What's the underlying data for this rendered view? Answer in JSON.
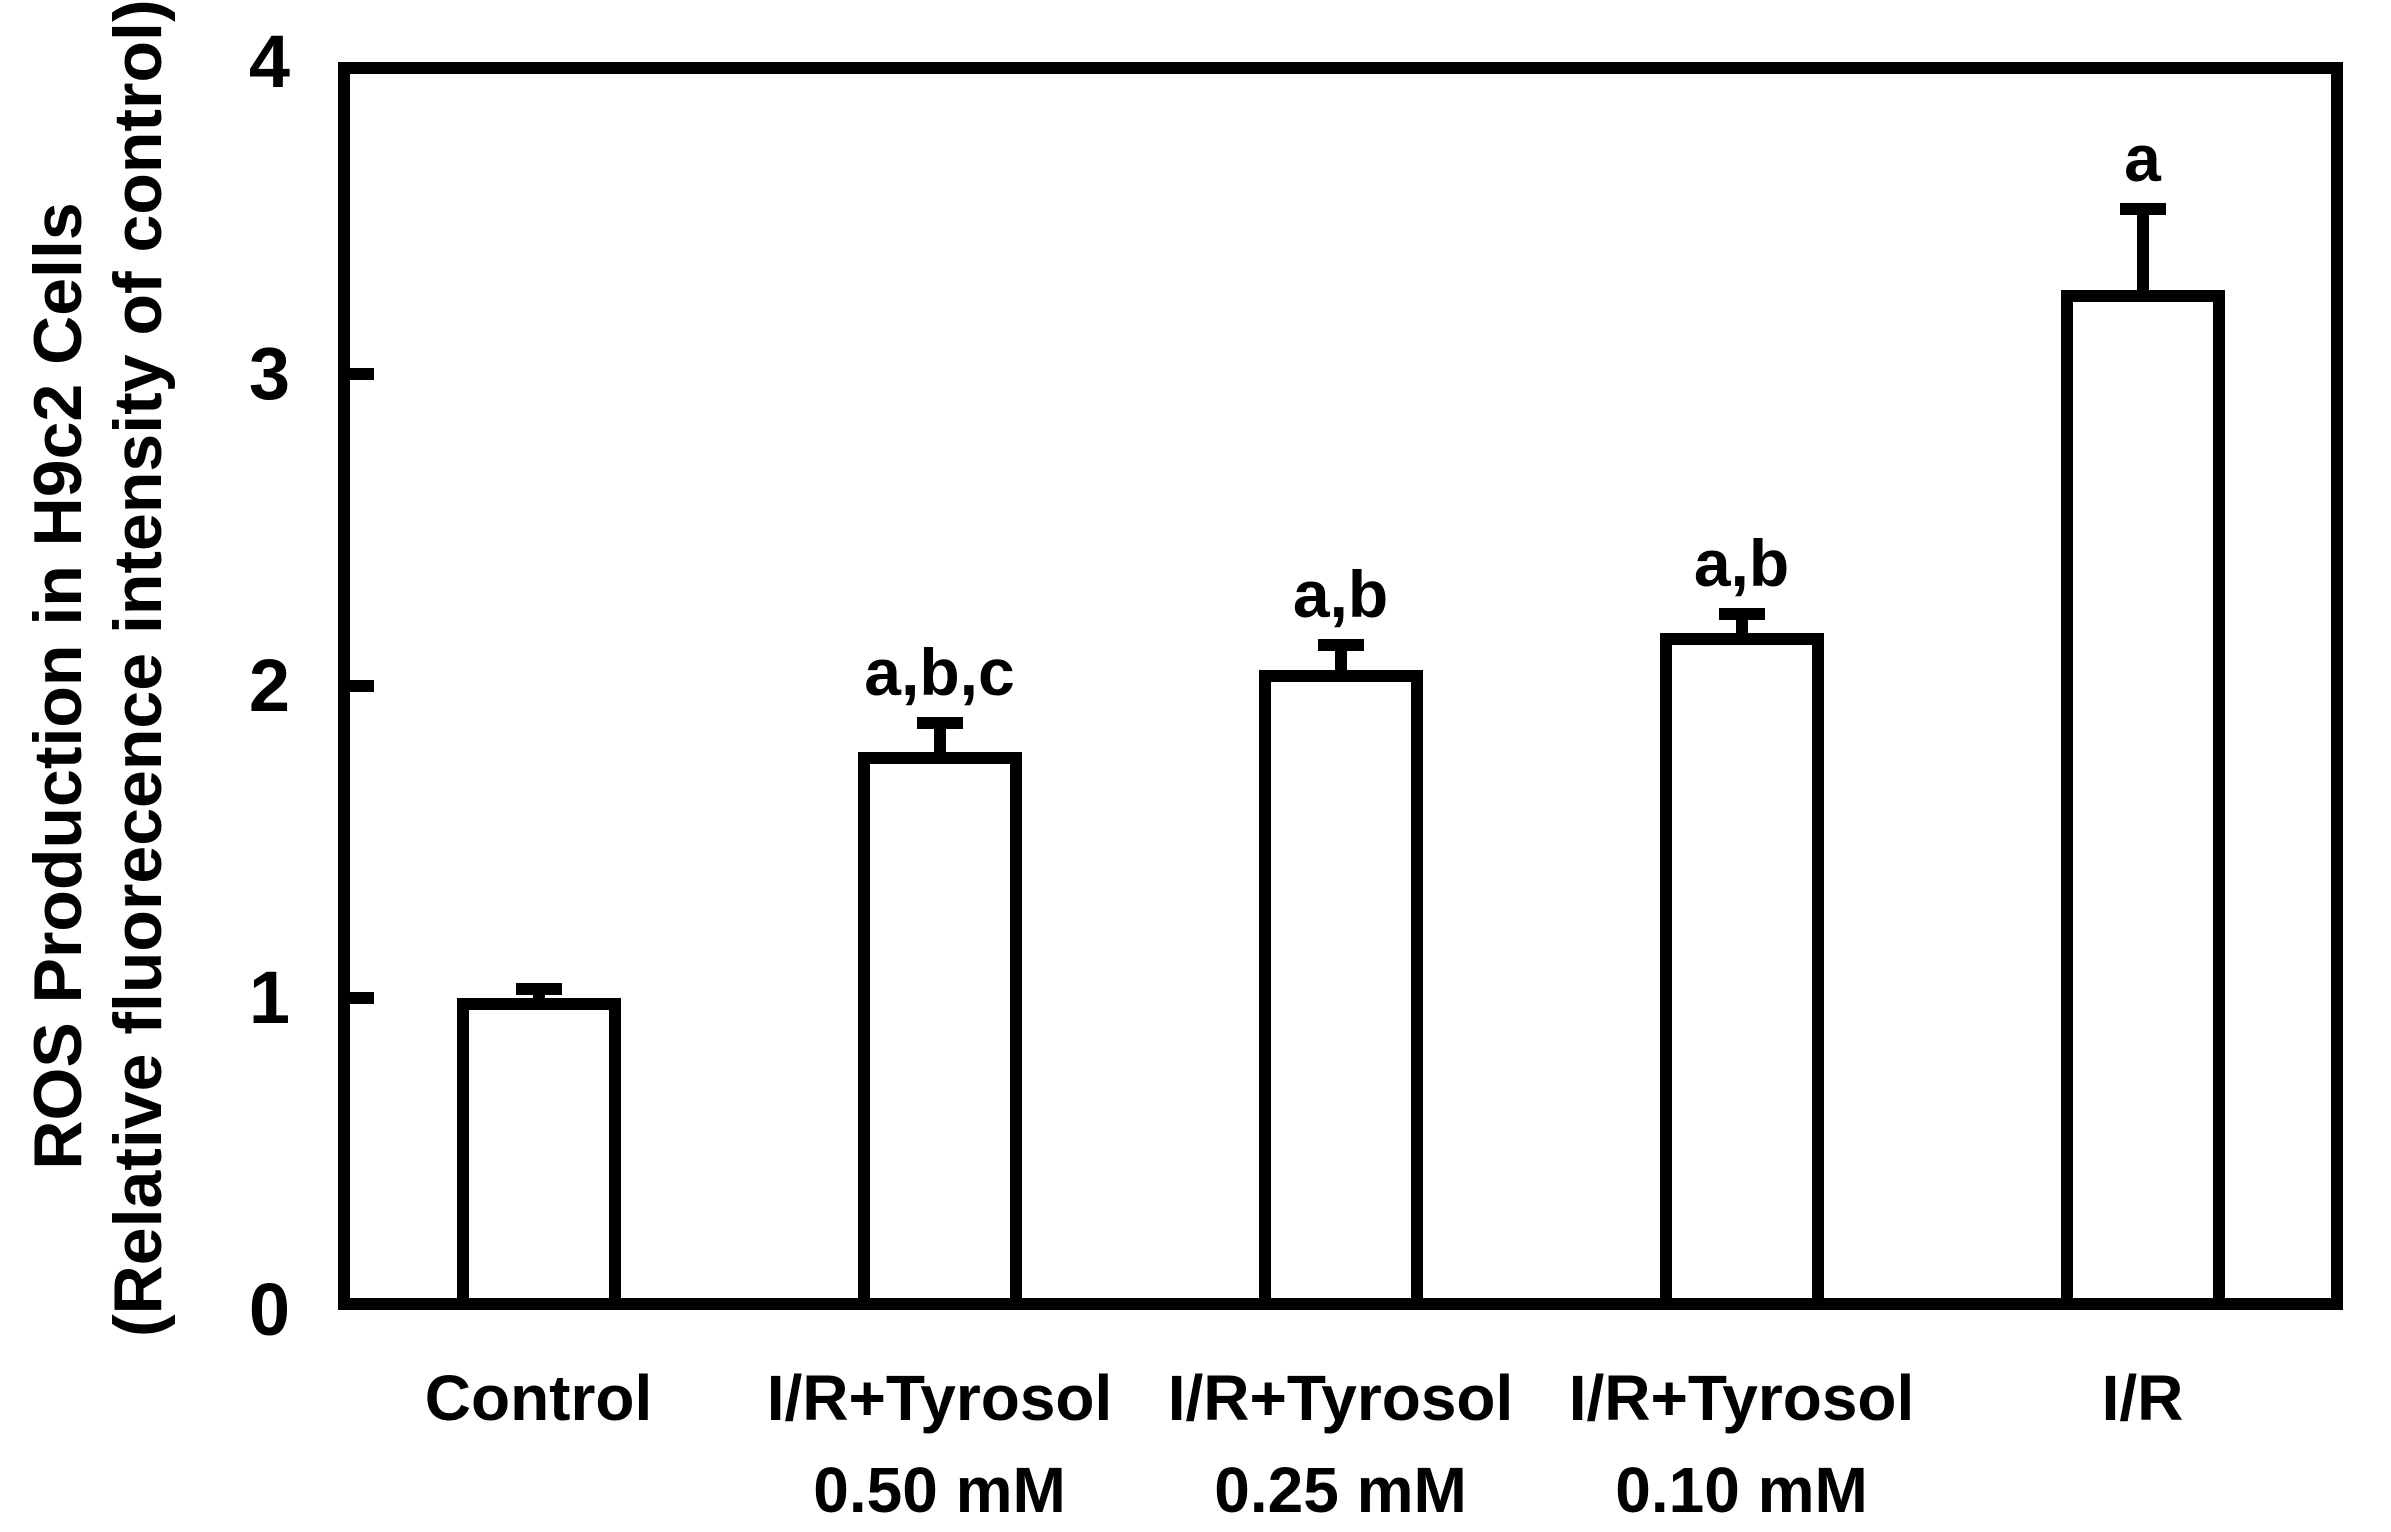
{
  "figure": {
    "background_color": "#ffffff",
    "ink_color": "#000000"
  },
  "y_axis": {
    "title_line1": "ROS Production in H9c2 Cells",
    "title_line2": "(Relative fluorecence intensity of control)"
  },
  "chart_data": {
    "type": "bar",
    "title": "",
    "xlabel": "",
    "ylabel": "ROS Production in H9c2 Cells (Relative fluorecence intensity of control)",
    "ylim": [
      0,
      4
    ],
    "yticks": [
      0,
      1,
      2,
      3,
      4
    ],
    "grid": false,
    "legend": false,
    "bar_fill": "#ffffff",
    "bar_stroke": "#000000",
    "error_bars": "upper_only_with_caps",
    "categories": [
      {
        "line1": "Control",
        "line2": ""
      },
      {
        "line1": "I/R+Tyrosol",
        "line2": "0.50 mM"
      },
      {
        "line1": "I/R+Tyrosol",
        "line2": "0.25 mM"
      },
      {
        "line1": "I/R+Tyrosol",
        "line2": "0.10 mM"
      },
      {
        "line1": "I/R",
        "line2": ""
      }
    ],
    "values": [
      1.0,
      1.79,
      2.05,
      2.17,
      3.27
    ],
    "errors": [
      0.03,
      0.09,
      0.08,
      0.06,
      0.26
    ],
    "annotations": [
      "",
      "a,b,c",
      "a,b",
      "a,b",
      "a"
    ]
  }
}
